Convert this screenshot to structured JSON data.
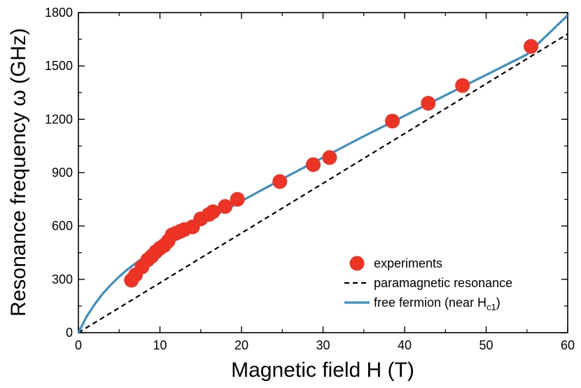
{
  "chart_data": {
    "type": "scatter",
    "title": "",
    "xlabel": "Magnetic field H (T)",
    "ylabel": "Resonance frequency ω (GHz)",
    "xlim": [
      0,
      60
    ],
    "ylim": [
      0,
      1800
    ],
    "xticks": [
      0,
      10,
      20,
      30,
      40,
      50,
      60
    ],
    "yticks": [
      0,
      300,
      600,
      900,
      1200,
      1500,
      1800
    ],
    "legend_position": "lower-right",
    "series": [
      {
        "name": "experiments",
        "kind": "scatter",
        "color": "#ec3324",
        "points": [
          [
            6.5,
            295
          ],
          [
            7.0,
            325
          ],
          [
            7.8,
            370
          ],
          [
            8.5,
            410
          ],
          [
            9.0,
            430
          ],
          [
            9.5,
            455
          ],
          [
            10.0,
            475
          ],
          [
            10.5,
            490
          ],
          [
            11.0,
            515
          ],
          [
            11.5,
            550
          ],
          [
            12.0,
            560
          ],
          [
            12.5,
            570
          ],
          [
            13.0,
            580
          ],
          [
            14.0,
            595
          ],
          [
            15.0,
            640
          ],
          [
            16.0,
            665
          ],
          [
            16.5,
            680
          ],
          [
            18.0,
            710
          ],
          [
            19.5,
            750
          ],
          [
            24.7,
            850
          ],
          [
            28.8,
            945
          ],
          [
            30.8,
            985
          ],
          [
            38.5,
            1190
          ],
          [
            42.9,
            1290
          ],
          [
            47.1,
            1390
          ],
          [
            55.5,
            1610
          ]
        ]
      },
      {
        "name": "paramagnetic resonance",
        "kind": "line",
        "style": "dashed",
        "color": "#000000",
        "points": [
          [
            0,
            0
          ],
          [
            60,
            1680
          ]
        ]
      },
      {
        "name": "free fermion (near H",
        "name_sub": "c1",
        "name_end": ")",
        "kind": "line",
        "style": "solid",
        "color": "#3d8ec2",
        "points": [
          [
            0,
            0
          ],
          [
            0.5,
            45
          ],
          [
            1,
            90
          ],
          [
            2,
            160
          ],
          [
            3,
            220
          ],
          [
            4,
            270
          ],
          [
            5,
            315
          ],
          [
            6,
            355
          ],
          [
            7,
            390
          ],
          [
            8,
            425
          ],
          [
            10,
            485
          ],
          [
            12,
            540
          ],
          [
            15,
            615
          ],
          [
            20,
            740
          ],
          [
            25,
            865
          ],
          [
            30,
            985
          ],
          [
            35,
            1105
          ],
          [
            40,
            1220
          ],
          [
            45,
            1335
          ],
          [
            50,
            1450
          ],
          [
            55,
            1565
          ],
          [
            60,
            1785
          ]
        ]
      }
    ]
  }
}
